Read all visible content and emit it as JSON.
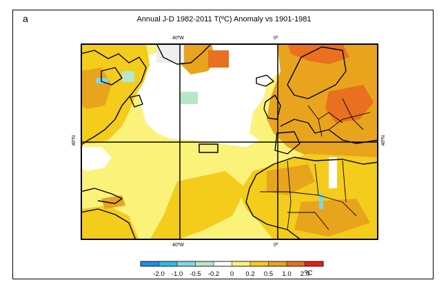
{
  "figure": {
    "panel_label": "a",
    "title": "Annual J-D 1982-2011 T(ºC) Anomaly vs 1901-1981"
  },
  "axes": {
    "top_ticks": [
      "40ºW",
      "0º"
    ],
    "bottom_ticks": [
      "40ºW",
      "0º"
    ],
    "left_tick": "40ºN",
    "right_tick": "40ºN"
  },
  "legend": {
    "colors": [
      "#1e90e6",
      "#2fbcea",
      "#7fd7e9",
      "#b7e7c9",
      "#ffffff",
      "#fbf27a",
      "#f3cc1c",
      "#e8a41c",
      "#e8701f",
      "#e81d1d"
    ],
    "labels": [
      "-2.0",
      "-1.0",
      "-0.5",
      "-0.2",
      "0",
      "0.2",
      "0.5",
      "1.0",
      "2.0"
    ],
    "unit": "ºC"
  }
}
